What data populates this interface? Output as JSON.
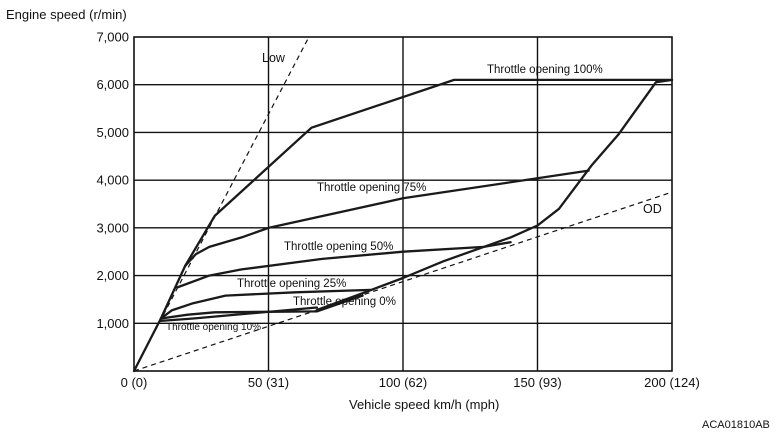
{
  "chart_data": {
    "type": "line",
    "ylabel": "Engine speed (r/min)",
    "xlabel": "Vehicle speed  km/h (mph)",
    "figure_code": "ACA01810AB",
    "xlim": [
      0,
      200
    ],
    "ylim": [
      0,
      7000
    ],
    "grid": true,
    "x_ticks": [
      0,
      50,
      100,
      150,
      200
    ],
    "x_tick_labels": [
      "0 (0)",
      "50 (31)",
      "100 (62)",
      "150 (93)",
      "200 (124)"
    ],
    "y_ticks": [
      1000,
      2000,
      3000,
      4000,
      5000,
      6000,
      7000
    ],
    "y_tick_labels": [
      "1,000",
      "2,000",
      "3,000",
      "4,000",
      "5,000",
      "6,000",
      "7,000"
    ],
    "reference_lines": [
      {
        "name": "Low",
        "style": "dashed",
        "x": [
          0,
          65
        ],
        "y": [
          0,
          7000
        ]
      },
      {
        "name": "OD",
        "style": "dashed",
        "x": [
          0,
          200
        ],
        "y": [
          0,
          3750
        ]
      }
    ],
    "series": [
      {
        "name": "Throttle opening 100%",
        "x": [
          0,
          10,
          19,
          30,
          66,
          119,
          200
        ],
        "y": [
          0,
          1100,
          2200,
          3250,
          5100,
          6100,
          6100
        ]
      },
      {
        "name": "Throttle opening 75%",
        "x": [
          19,
          23,
          28,
          40,
          50,
          100,
          169
        ],
        "y": [
          2200,
          2450,
          2600,
          2800,
          3000,
          3620,
          4200
        ]
      },
      {
        "name": "Throttle opening 50%",
        "x": [
          16,
          28,
          40,
          70,
          100,
          130,
          140
        ],
        "y": [
          1750,
          2000,
          2130,
          2350,
          2500,
          2600,
          2700
        ]
      },
      {
        "name": "Throttle opening 25%",
        "x": [
          10,
          14,
          22,
          34,
          60,
          88
        ],
        "y": [
          1100,
          1270,
          1420,
          1580,
          1650,
          1700
        ]
      },
      {
        "name": "Throttle opening 10%",
        "x": [
          10,
          22,
          68
        ],
        "y": [
          1050,
          1100,
          1330
        ]
      },
      {
        "name": "Throttle opening 0%",
        "x": [
          10,
          20,
          30,
          68,
          85
        ],
        "y": [
          1100,
          1180,
          1230,
          1250,
          1580
        ]
      },
      {
        "name": "Shift line",
        "x": [
          68,
          85,
          100,
          115,
          130,
          140,
          150,
          158,
          170,
          180,
          194,
          200
        ],
        "y": [
          1280,
          1630,
          1950,
          2300,
          2600,
          2800,
          3050,
          3400,
          4300,
          4950,
          6050,
          6100
        ]
      }
    ]
  }
}
